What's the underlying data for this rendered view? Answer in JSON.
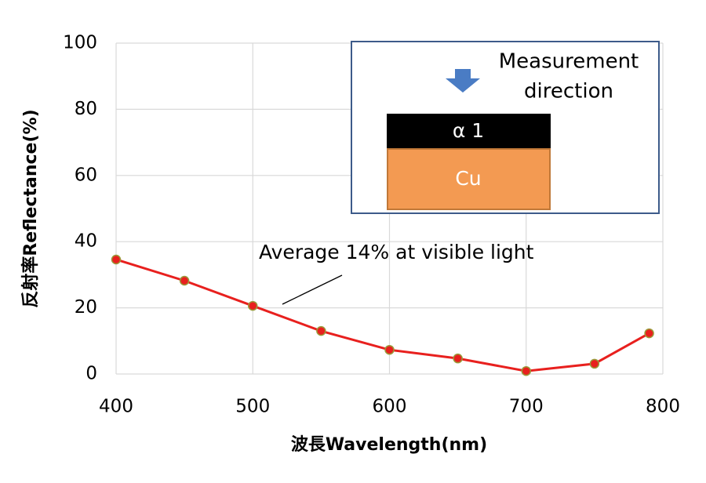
{
  "chart_data": {
    "type": "line",
    "x_label": "波長Wavelength(nm)",
    "y_label": "反射率Reflectance(%)",
    "x": [
      400,
      450,
      500,
      550,
      600,
      650,
      700,
      750,
      790
    ],
    "series": [
      {
        "name": "Reflectance",
        "color": "#e8201e",
        "values": [
          34.6,
          28.2,
          20.6,
          13.0,
          7.3,
          4.7,
          0.9,
          3.1,
          12.3
        ]
      }
    ],
    "xlim": [
      400,
      800
    ],
    "xticks": [
      400,
      500,
      600,
      700,
      800
    ],
    "ylim": [
      0,
      100
    ],
    "yticks": [
      0,
      20,
      40,
      60,
      80,
      100
    ],
    "grid": true,
    "annotation": "Average 14% at visible light",
    "inset": {
      "direction": [
        "Measurement",
        "direction"
      ],
      "top_layer": "α 1",
      "bottom_layer": "Cu"
    }
  }
}
